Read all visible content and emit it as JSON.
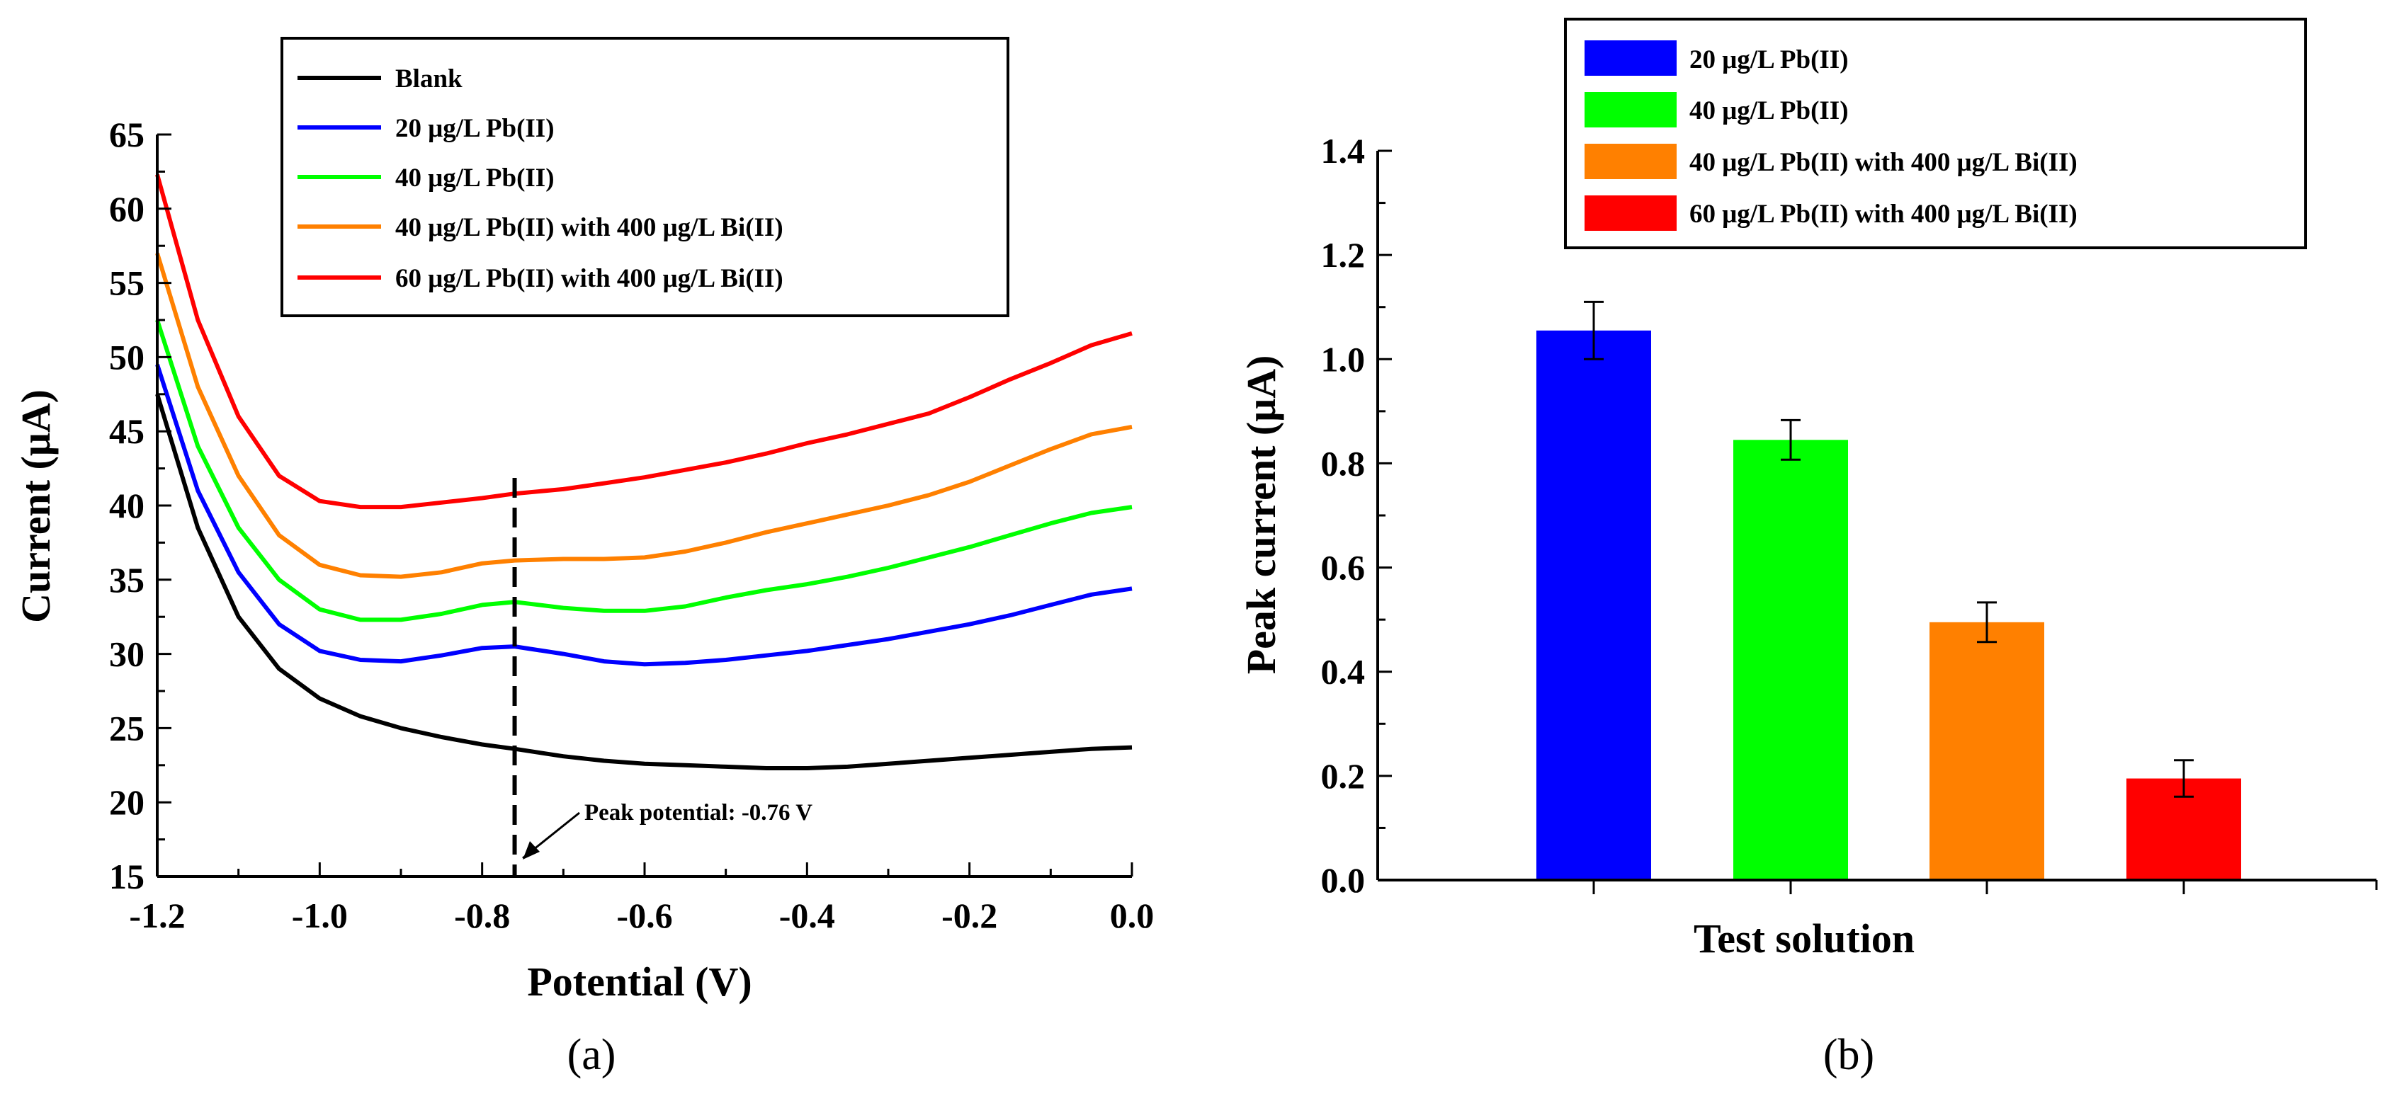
{
  "chart_data": [
    {
      "type": "line",
      "panel_label": "(a)",
      "xlabel": "Potential (V)",
      "ylabel": "Current (μA)",
      "xlim": [
        -1.2,
        0.0
      ],
      "ylim": [
        15,
        65
      ],
      "x_ticks": [
        -1.2,
        -1.0,
        -0.8,
        -0.6,
        -0.4,
        -0.2,
        0.0
      ],
      "x_tick_labels": [
        "-1.2",
        "-1.0",
        "-0.8",
        "-0.6",
        "-0.4",
        "-0.2",
        "0.0"
      ],
      "y_ticks": [
        15,
        20,
        25,
        30,
        35,
        40,
        45,
        50,
        55,
        60,
        65
      ],
      "y_tick_labels": [
        "15",
        "20",
        "25",
        "30",
        "35",
        "40",
        "45",
        "50",
        "55",
        "60",
        "65"
      ],
      "grid": false,
      "legend_position": "top-right",
      "series": [
        {
          "name": "Blank",
          "color": "#000000",
          "x": [
            -1.2,
            -1.15,
            -1.1,
            -1.05,
            -1.0,
            -0.95,
            -0.9,
            -0.85,
            -0.8,
            -0.76,
            -0.7,
            -0.65,
            -0.6,
            -0.55,
            -0.5,
            -0.45,
            -0.4,
            -0.35,
            -0.3,
            -0.25,
            -0.2,
            -0.15,
            -0.1,
            -0.05,
            0.0
          ],
          "y": [
            47.5,
            38.5,
            32.5,
            29.0,
            27.0,
            25.8,
            25.0,
            24.4,
            23.9,
            23.6,
            23.1,
            22.8,
            22.6,
            22.5,
            22.4,
            22.3,
            22.3,
            22.4,
            22.6,
            22.8,
            23.0,
            23.2,
            23.4,
            23.6,
            23.7
          ]
        },
        {
          "name": "20 μg/L Pb(II)",
          "color": "#0000ff",
          "x": [
            -1.2,
            -1.15,
            -1.1,
            -1.05,
            -1.0,
            -0.95,
            -0.9,
            -0.85,
            -0.8,
            -0.76,
            -0.7,
            -0.65,
            -0.6,
            -0.55,
            -0.5,
            -0.45,
            -0.4,
            -0.35,
            -0.3,
            -0.25,
            -0.2,
            -0.15,
            -0.1,
            -0.05,
            0.0
          ],
          "y": [
            49.5,
            41.0,
            35.5,
            32.0,
            30.2,
            29.6,
            29.5,
            29.9,
            30.4,
            30.5,
            30.0,
            29.5,
            29.3,
            29.4,
            29.6,
            29.9,
            30.2,
            30.6,
            31.0,
            31.5,
            32.0,
            32.6,
            33.3,
            34.0,
            34.4
          ]
        },
        {
          "name": "40 μg/L Pb(II)",
          "color": "#00ff00",
          "x": [
            -1.2,
            -1.15,
            -1.1,
            -1.05,
            -1.0,
            -0.95,
            -0.9,
            -0.85,
            -0.8,
            -0.76,
            -0.7,
            -0.65,
            -0.6,
            -0.55,
            -0.5,
            -0.45,
            -0.4,
            -0.35,
            -0.3,
            -0.25,
            -0.2,
            -0.15,
            -0.1,
            -0.05,
            0.0
          ],
          "y": [
            52.5,
            44.0,
            38.5,
            35.0,
            33.0,
            32.3,
            32.3,
            32.7,
            33.3,
            33.5,
            33.1,
            32.9,
            32.9,
            33.2,
            33.8,
            34.3,
            34.7,
            35.2,
            35.8,
            36.5,
            37.2,
            38.0,
            38.8,
            39.5,
            39.9
          ]
        },
        {
          "name": "40 μg/L Pb(II) with 400 μg/L Bi(II)",
          "color": "#ff8000",
          "x": [
            -1.2,
            -1.15,
            -1.1,
            -1.05,
            -1.0,
            -0.95,
            -0.9,
            -0.85,
            -0.8,
            -0.76,
            -0.7,
            -0.65,
            -0.6,
            -0.55,
            -0.5,
            -0.45,
            -0.4,
            -0.35,
            -0.3,
            -0.25,
            -0.2,
            -0.15,
            -0.1,
            -0.05,
            0.0
          ],
          "y": [
            57.0,
            48.0,
            42.0,
            38.0,
            36.0,
            35.3,
            35.2,
            35.5,
            36.1,
            36.3,
            36.4,
            36.4,
            36.5,
            36.9,
            37.5,
            38.2,
            38.8,
            39.4,
            40.0,
            40.7,
            41.6,
            42.7,
            43.8,
            44.8,
            45.3
          ]
        },
        {
          "name": "60 μg/L Pb(II) with 400 μg/L Bi(II)",
          "color": "#ff0000",
          "x": [
            -1.2,
            -1.15,
            -1.1,
            -1.05,
            -1.0,
            -0.95,
            -0.9,
            -0.85,
            -0.8,
            -0.76,
            -0.7,
            -0.65,
            -0.6,
            -0.55,
            -0.5,
            -0.45,
            -0.4,
            -0.35,
            -0.3,
            -0.25,
            -0.2,
            -0.15,
            -0.1,
            -0.05,
            0.0
          ],
          "y": [
            62.3,
            52.5,
            46.0,
            42.0,
            40.3,
            39.9,
            39.9,
            40.2,
            40.5,
            40.8,
            41.1,
            41.5,
            41.9,
            42.4,
            42.9,
            43.5,
            44.2,
            44.8,
            45.5,
            46.2,
            47.3,
            48.5,
            49.6,
            50.8,
            51.6
          ]
        }
      ],
      "annotations": {
        "vline_x": -0.76,
        "text": "Peak potential: -0.76 V",
        "arrow_target": [
          -0.76,
          15
        ]
      }
    },
    {
      "type": "bar",
      "panel_label": "(b)",
      "xlabel": "Test solution",
      "ylabel": "Peak current (μA)",
      "ylim": [
        0.0,
        1.4
      ],
      "y_ticks": [
        0.0,
        0.2,
        0.4,
        0.6,
        0.8,
        1.0,
        1.2,
        1.4
      ],
      "y_tick_labels": [
        "0.0",
        "0.2",
        "0.4",
        "0.6",
        "0.8",
        "1.0",
        "1.2",
        "1.4"
      ],
      "grid": false,
      "legend_position": "top-right",
      "categories": [
        "20 μg/L Pb(II)",
        "40 μg/L Pb(II)",
        "40 μg/L Pb(II) with 400 μg/L Bi(II)",
        "60 μg/L Pb(II) with 400 μg/L Bi(II)"
      ],
      "values": [
        1.055,
        0.845,
        0.495,
        0.195
      ],
      "errors": [
        0.055,
        0.038,
        0.038,
        0.035
      ],
      "colors": [
        "#0000ff",
        "#00ff00",
        "#ff8000",
        "#ff0000"
      ]
    }
  ]
}
